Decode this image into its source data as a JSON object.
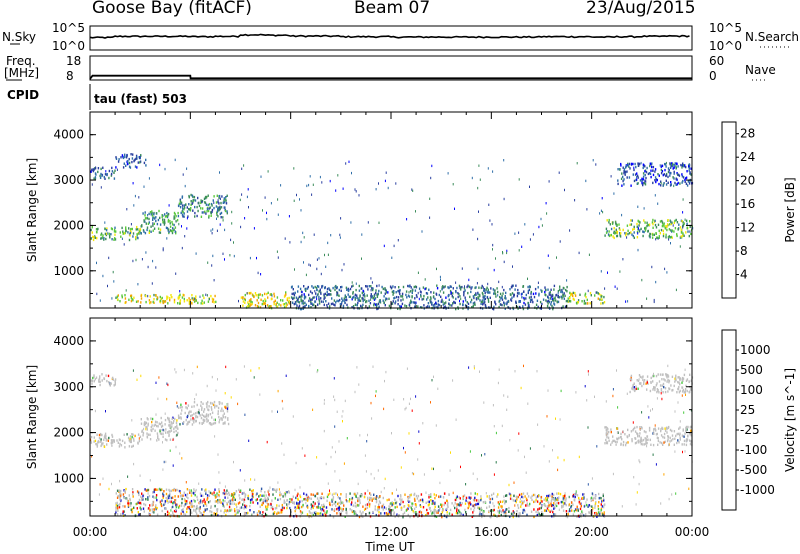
{
  "header": {
    "radar": "Goose Bay (fitACF)",
    "beam": "Beam 07",
    "date": "23/Aug/2015"
  },
  "top_panels": {
    "nsky_label": "N.Sky",
    "nsearch_label": "N.Search",
    "freq_label_line1": "Freq.",
    "freq_label_line2": "[MHz]",
    "nave_label": "Nave",
    "cpid_label": "CPID",
    "cpid_text": "tau (fast) 503",
    "noise_left_ticks": [
      "10^5",
      "10^0"
    ],
    "noise_right_ticks": [
      "10^5",
      "10^0"
    ],
    "freq_left_ticks": [
      "18",
      "8"
    ],
    "freq_right_ticks": [
      "60",
      "0"
    ]
  },
  "colors": {
    "power_scale": [
      "#0000ff",
      "#2a3fa0",
      "#2e6ea8",
      "#3b8c5a",
      "#5ac83c",
      "#f5e60a",
      "#f5a500",
      "#f06400",
      "#e60000"
    ],
    "velocity_scale": [
      "#ff0000",
      "#ff6a00",
      "#ffa500",
      "#ffdc00",
      "#c0c0c0",
      "#46c83c",
      "#2a7a4a",
      "#2e5aa8",
      "#1010d0"
    ],
    "ground_scatter": "#c0c0c0"
  },
  "chart_data": [
    {
      "type": "line",
      "title": "N.Sky / N.Search",
      "x_range": [
        "00:00",
        "24:00"
      ],
      "ylim": [
        1,
        100000
      ],
      "log_scale": true,
      "series": [
        {
          "name": "N.Sky",
          "x": [
            0,
            1,
            2,
            3,
            4,
            5,
            6,
            7,
            8,
            9,
            10,
            11,
            12,
            13,
            14,
            15,
            16,
            17,
            18,
            19,
            20,
            21,
            22,
            23,
            24
          ],
          "values": [
            400,
            700,
            700,
            700,
            600,
            700,
            1500,
            1200,
            800,
            800,
            600,
            600,
            500,
            500,
            500,
            500,
            500,
            500,
            600,
            600,
            500,
            600,
            700,
            800,
            800
          ]
        }
      ]
    },
    {
      "type": "line",
      "title": "Freq. [MHz] / Nave",
      "x_range": [
        "00:00",
        "24:00"
      ],
      "ylim": [
        8,
        18
      ],
      "series": [
        {
          "name": "Freq.",
          "x": [
            0,
            0.1,
            4,
            4.01,
            24
          ],
          "values": [
            8.4,
            9.8,
            9.8,
            8.7,
            8.7
          ]
        }
      ]
    },
    {
      "type": "heatmap",
      "ylabel": "Slant Range [km]",
      "xlabel": "Time UT",
      "x_ticks": [
        "00:00",
        "04:00",
        "08:00",
        "12:00",
        "16:00",
        "20:00",
        "00:00"
      ],
      "y_ticks": [
        1000,
        2000,
        3000,
        4000
      ],
      "ylim": [
        180,
        4500
      ],
      "colorbar_label": "Power [dB]",
      "colorbar_ticks": [
        4,
        8,
        12,
        16,
        20,
        24,
        28
      ],
      "colorbar_range": [
        0,
        30
      ],
      "bands": [
        {
          "x": [
            0.0,
            2.0
          ],
          "y": [
            1700,
            2000
          ],
          "value": 14
        },
        {
          "x": [
            2.0,
            3.5
          ],
          "y": [
            1850,
            2350
          ],
          "value": 12
        },
        {
          "x": [
            3.5,
            5.5
          ],
          "y": [
            2200,
            2700
          ],
          "value": 10
        },
        {
          "x": [
            0.0,
            1.0
          ],
          "y": [
            3050,
            3300
          ],
          "value": 8
        },
        {
          "x": [
            1.0,
            2.2
          ],
          "y": [
            3300,
            3600
          ],
          "value": 6
        },
        {
          "x": [
            20.5,
            24.0
          ],
          "y": [
            1750,
            2150
          ],
          "value": 14
        },
        {
          "x": [
            21.0,
            24.0
          ],
          "y": [
            2900,
            3400
          ],
          "value": 6
        },
        {
          "x": [
            1.0,
            5.0
          ],
          "y": [
            300,
            500
          ],
          "value": 18
        },
        {
          "x": [
            6.0,
            8.0
          ],
          "y": [
            200,
            550
          ],
          "value": 18
        },
        {
          "x": [
            8.0,
            19.0
          ],
          "y": [
            180,
            700
          ],
          "value": 8
        },
        {
          "x": [
            19.0,
            20.5
          ],
          "y": [
            300,
            550
          ],
          "value": 16
        }
      ]
    },
    {
      "type": "heatmap",
      "ylabel": "Slant Range [km]",
      "xlabel": "Time UT",
      "x_ticks": [
        "00:00",
        "04:00",
        "08:00",
        "12:00",
        "16:00",
        "20:00",
        "00:00"
      ],
      "y_ticks": [
        1000,
        2000,
        3000,
        4000
      ],
      "ylim": [
        180,
        4500
      ],
      "colorbar_label": "Velocity [m s^-1]",
      "colorbar_ticks": [
        "1000",
        "500",
        "100",
        "25",
        "-25",
        "-100",
        "-500",
        "-1000"
      ],
      "bands": [
        {
          "x": [
            0.0,
            2.0
          ],
          "y": [
            1700,
            2000
          ],
          "value": "ground"
        },
        {
          "x": [
            2.0,
            3.5
          ],
          "y": [
            1850,
            2350
          ],
          "value": "ground"
        },
        {
          "x": [
            3.5,
            5.5
          ],
          "y": [
            2200,
            2700
          ],
          "value": "ground"
        },
        {
          "x": [
            0.0,
            1.0
          ],
          "y": [
            3050,
            3300
          ],
          "value": "ground"
        },
        {
          "x": [
            20.5,
            24.0
          ],
          "y": [
            1750,
            2150
          ],
          "value": "ground"
        },
        {
          "x": [
            21.5,
            24.0
          ],
          "y": [
            2900,
            3300
          ],
          "value": "ground"
        },
        {
          "x": [
            1.0,
            8.0
          ],
          "y": [
            200,
            800
          ],
          "value": "mixed"
        },
        {
          "x": [
            8.0,
            20.5
          ],
          "y": [
            180,
            700
          ],
          "value": "mixed"
        }
      ]
    }
  ]
}
